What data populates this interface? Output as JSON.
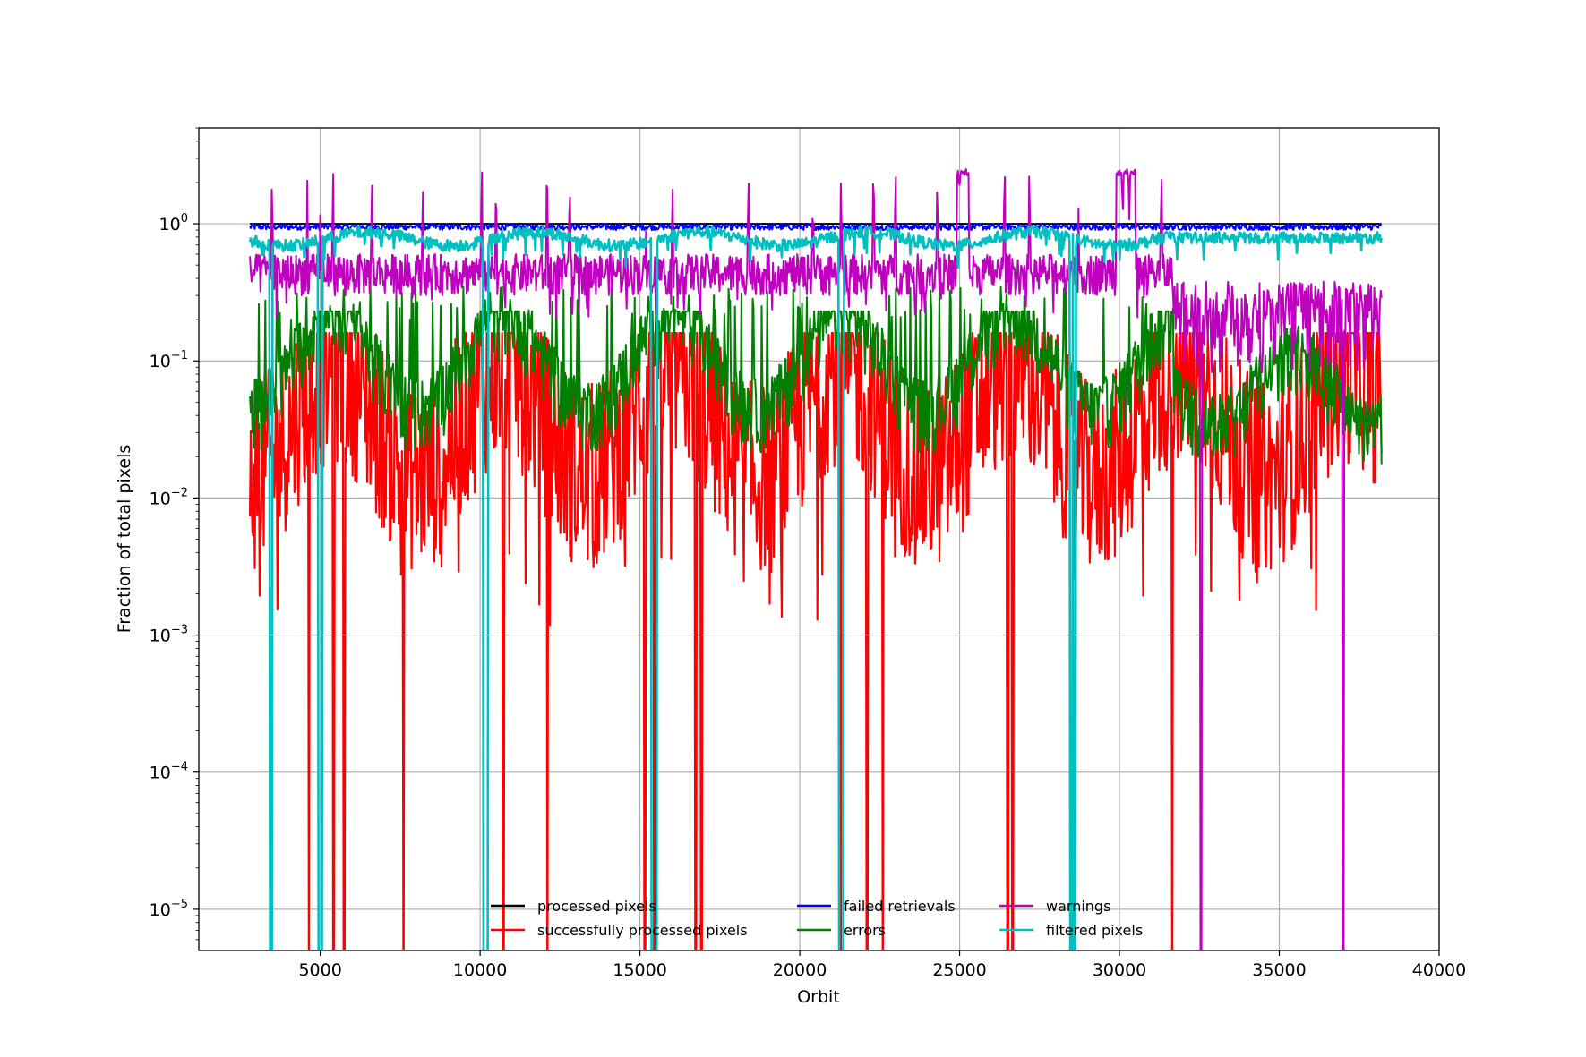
{
  "chart_data": {
    "type": "line",
    "title": "",
    "xlabel": "Orbit",
    "ylabel": "Fraction of total pixels",
    "yscale": "log",
    "xlim": [
      1200,
      40000
    ],
    "ylim": [
      5e-06,
      5
    ],
    "x_ticks": [
      5000,
      10000,
      15000,
      20000,
      25000,
      30000,
      35000,
      40000
    ],
    "x_tick_labels": [
      "5000",
      "10000",
      "15000",
      "20000",
      "25000",
      "30000",
      "35000",
      "40000"
    ],
    "y_ticks": [
      1e-05,
      0.0001,
      0.001,
      0.01,
      0.1,
      1
    ],
    "y_tick_labels": [
      {
        "base": "10",
        "exp": "−5"
      },
      {
        "base": "10",
        "exp": "−4"
      },
      {
        "base": "10",
        "exp": "−3"
      },
      {
        "base": "10",
        "exp": "−2"
      },
      {
        "base": "10",
        "exp": "−1"
      },
      {
        "base": "10",
        "exp": "0"
      }
    ],
    "grid": true,
    "legend_position": "bottom-center",
    "orbit_range": [
      2800,
      38200
    ],
    "series": [
      {
        "name": "processed pixels",
        "color": "#000000",
        "level": 1.0,
        "spread": 0.0
      },
      {
        "name": "successfully processed pixels",
        "color": "#ff0000",
        "typical_range": [
          0.004,
          0.15
        ]
      },
      {
        "name": "failed retrievals",
        "color": "#0000ff",
        "typical_range": [
          0.9,
          1.0
        ]
      },
      {
        "name": "errors",
        "color": "#008000",
        "typical_range": [
          0.03,
          0.22
        ]
      },
      {
        "name": "warnings",
        "color": "#bf00bf",
        "typical_range": [
          0.3,
          0.6
        ],
        "spikes_to": 2.5
      },
      {
        "name": "filtered pixels",
        "color": "#00bfbf",
        "typical_range": [
          0.65,
          0.9
        ]
      }
    ],
    "red_dropout_orbits": [
      4650,
      5420,
      5750,
      7600,
      10730,
      12100,
      15150,
      15450,
      16750,
      16920,
      21280,
      22100,
      22600,
      26500,
      26650,
      31650
    ],
    "cyan_dropout_orbits": [
      3450,
      4980,
      5020,
      10130,
      10200,
      15400,
      15480,
      21250,
      21330,
      28500,
      28600
    ],
    "magenta_dropout_orbits": [
      32550,
      37000
    ],
    "magenta_spike_orbits": [
      3500,
      4600,
      5000,
      5400,
      6600,
      8200,
      10050,
      10500,
      12100,
      12800,
      15200,
      16000,
      18400,
      20400,
      21300,
      22300,
      23000,
      24300,
      25000,
      26400,
      27200,
      28700,
      30100,
      30300,
      31300
    ]
  }
}
